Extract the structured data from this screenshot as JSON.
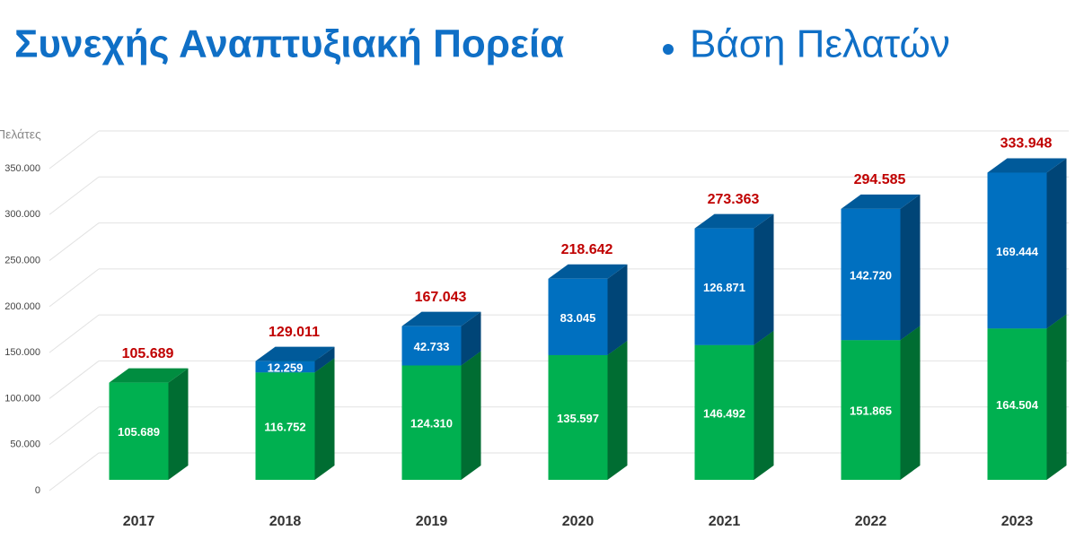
{
  "chart_data": {
    "type": "bar3d-stacked",
    "title": "Συνεχής Αναπτυξιακή Πορεία",
    "subtitle": "Βάση Πελατών",
    "y_label": "Πελάτες",
    "categories": [
      "2017",
      "2018",
      "2019",
      "2020",
      "2021",
      "2022",
      "2023"
    ],
    "series": [
      {
        "color": "#00b050",
        "values": [
          105689,
          116752,
          124310,
          135597,
          146492,
          151865,
          164504
        ],
        "value_labels": [
          "105.689",
          "116.752",
          "124.310",
          "135.597",
          "146.492",
          "151.865",
          "164.504"
        ]
      },
      {
        "color": "#0070c0",
        "values": [
          null,
          12259,
          42733,
          83045,
          126871,
          142720,
          169444
        ],
        "value_labels": [
          null,
          "12.259",
          "42.733",
          "83.045",
          "126.871",
          "142.720",
          "169.444"
        ]
      }
    ],
    "totals": {
      "color": "#c00000",
      "values": [
        105689,
        129011,
        167043,
        218642,
        273363,
        294585,
        333948
      ],
      "value_labels": [
        "105.689",
        "129.011",
        "167.043",
        "218.642",
        "273.363",
        "294.585",
        "333.948"
      ]
    },
    "ylim": [
      0,
      350000
    ],
    "yticks": [
      0,
      {
        "value": 50000,
        "label": "50.000"
      },
      {
        "value": 100000,
        "label": "100.000"
      },
      {
        "value": 150000,
        "label": "150.000"
      },
      {
        "value": 200000,
        "label": "200.000"
      },
      {
        "value": 250000,
        "label": "250.000"
      },
      {
        "value": 300000,
        "label": "300.000"
      },
      {
        "value": 350000,
        "label": "350.000"
      }
    ],
    "grid": true
  }
}
